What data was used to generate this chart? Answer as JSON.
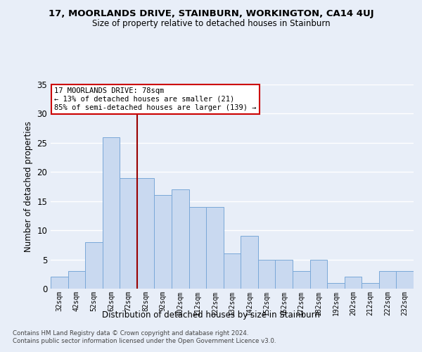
{
  "title": "17, MOORLANDS DRIVE, STAINBURN, WORKINGTON, CA14 4UJ",
  "subtitle": "Size of property relative to detached houses in Stainburn",
  "xlabel": "Distribution of detached houses by size in Stainburn",
  "ylabel": "Number of detached properties",
  "footer1": "Contains HM Land Registry data © Crown copyright and database right 2024.",
  "footer2": "Contains public sector information licensed under the Open Government Licence v3.0.",
  "annotation_line1": "17 MOORLANDS DRIVE: 78sqm",
  "annotation_line2": "← 13% of detached houses are smaller (21)",
  "annotation_line3": "85% of semi-detached houses are larger (139) →",
  "bar_color": "#c9d9f0",
  "bar_edge_color": "#7aa8d8",
  "vline_color": "#990000",
  "categories": [
    "32sqm",
    "42sqm",
    "52sqm",
    "62sqm",
    "72sqm",
    "82sqm",
    "92sqm",
    "102sqm",
    "112sqm",
    "122sqm",
    "132sqm",
    "142sqm",
    "152sqm",
    "162sqm",
    "172sqm",
    "182sqm",
    "192sqm",
    "202sqm",
    "212sqm",
    "222sqm",
    "232sqm"
  ],
  "values": [
    2,
    3,
    8,
    26,
    19,
    19,
    16,
    17,
    14,
    14,
    6,
    9,
    5,
    5,
    3,
    5,
    1,
    2,
    1,
    3,
    3
  ],
  "ylim": [
    0,
    35
  ],
  "yticks": [
    0,
    5,
    10,
    15,
    20,
    25,
    30,
    35
  ],
  "bg_color": "#e8eef8",
  "grid_color": "#ffffff"
}
